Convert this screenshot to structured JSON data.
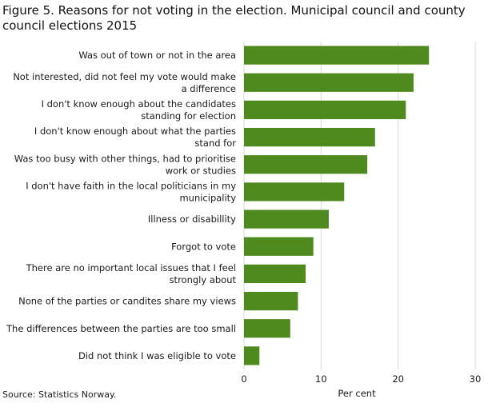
{
  "chart_data": {
    "type": "bar",
    "orientation": "horizontal",
    "title": "Figure 5. Reasons for not voting in the election. Municipal council and county council elections 2015",
    "xlabel": "Per cent",
    "ylabel": "",
    "xlim": [
      0,
      30
    ],
    "xticks": [
      "0",
      "10",
      "20",
      "30"
    ],
    "grid": "vertical",
    "bar_color": "#4e8a1e",
    "categories": [
      "Was out of town or not in the area",
      "Not interested, did not feel my vote would make a difference",
      "I don't know enough about the candidates standing for election",
      "I don't know enough about what the parties stand for",
      "Was too busy with other things, had to prioritise work or studies",
      "I don't have faith in the local politicians in my municipality",
      "Illness or disabillity",
      "Forgot to vote",
      "There are no important local issues that I feel strongly about",
      "None of the parties or candites share my views",
      "The differences between the parties are too small",
      "Did not think I was eligible to vote"
    ],
    "category_lines": [
      [
        "Was out of town or not in the area"
      ],
      [
        "Not interested, did not feel my vote would make",
        "a difference"
      ],
      [
        "I don't know enough about the candidates",
        "standing for election"
      ],
      [
        "I don't know enough about what the parties",
        "stand for"
      ],
      [
        "Was too busy with other things, had to prioritise",
        "work or studies"
      ],
      [
        "I don't have faith in the local politicians in my",
        "municipality"
      ],
      [
        "Illness or disabillity"
      ],
      [
        "Forgot to vote"
      ],
      [
        "There are no important local issues that I feel",
        "strongly about"
      ],
      [
        "None of the parties or candites share my views"
      ],
      [
        "The differences between the parties are too small"
      ],
      [
        "Did not think I was eligible to vote"
      ]
    ],
    "values": [
      24,
      22,
      21,
      17,
      16,
      13,
      11,
      9,
      8,
      7,
      6,
      2
    ]
  },
  "source": "Source: Statistics Norway."
}
